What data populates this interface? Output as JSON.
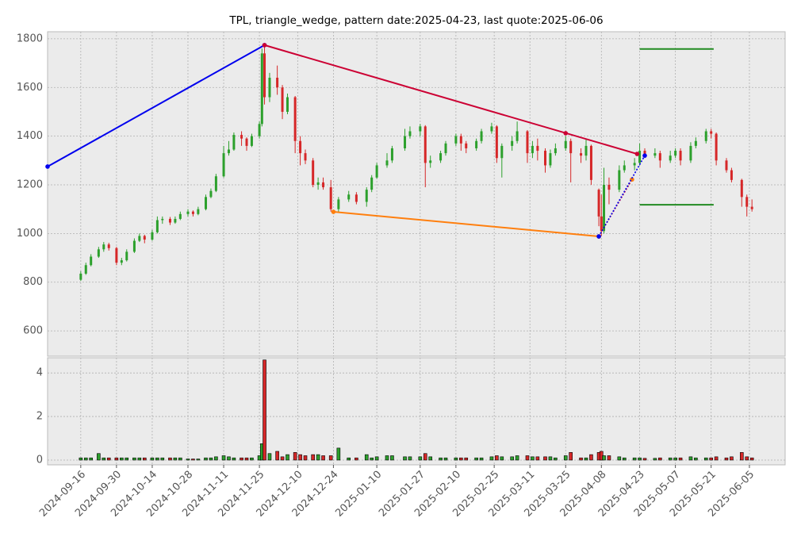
{
  "chart_data": {
    "type": "candlestick",
    "title": "TPL, triangle_wedge, pattern date:2025-04-23, last quote:2025-06-06",
    "up_color": "#2ca02c",
    "down_color": "#d62728",
    "grid": true,
    "xlim": [
      "2024-09-03",
      "2025-06-19"
    ],
    "xticks": [
      "2024-09-16",
      "2024-09-30",
      "2024-10-14",
      "2024-10-28",
      "2024-11-11",
      "2024-11-25",
      "2024-12-10",
      "2024-12-24",
      "2025-01-10",
      "2025-01-27",
      "2025-02-10",
      "2025-02-25",
      "2025-03-11",
      "2025-03-25",
      "2025-04-08",
      "2025-04-23",
      "2025-05-07",
      "2025-05-21",
      "2025-06-05"
    ],
    "ylim": [
      496,
      1829
    ],
    "yticks": [
      600,
      800,
      1000,
      1200,
      1400,
      1600,
      1800
    ],
    "volume_ylim": [
      -0.22,
      4.7
    ],
    "volume_yticks": [
      0,
      2,
      4
    ],
    "x": [
      "2024-09-16",
      "2024-09-18",
      "2024-09-20",
      "2024-09-23",
      "2024-09-25",
      "2024-09-27",
      "2024-09-30",
      "2024-10-02",
      "2024-10-04",
      "2024-10-07",
      "2024-10-09",
      "2024-10-11",
      "2024-10-14",
      "2024-10-16",
      "2024-10-18",
      "2024-10-21",
      "2024-10-23",
      "2024-10-25",
      "2024-10-28",
      "2024-10-30",
      "2024-11-01",
      "2024-11-04",
      "2024-11-06",
      "2024-11-08",
      "2024-11-11",
      "2024-11-13",
      "2024-11-15",
      "2024-11-18",
      "2024-11-20",
      "2024-11-22",
      "2024-11-25",
      "2024-11-26",
      "2024-11-27",
      "2024-11-29",
      "2024-12-02",
      "2024-12-04",
      "2024-12-06",
      "2024-12-09",
      "2024-12-11",
      "2024-12-13",
      "2024-12-16",
      "2024-12-18",
      "2024-12-20",
      "2024-12-23",
      "2024-12-26",
      "2024-12-30",
      "2025-01-02",
      "2025-01-06",
      "2025-01-08",
      "2025-01-10",
      "2025-01-14",
      "2025-01-16",
      "2025-01-21",
      "2025-01-23",
      "2025-01-27",
      "2025-01-29",
      "2025-01-31",
      "2025-02-04",
      "2025-02-06",
      "2025-02-10",
      "2025-02-12",
      "2025-02-14",
      "2025-02-18",
      "2025-02-20",
      "2025-02-24",
      "2025-02-26",
      "2025-02-28",
      "2025-03-04",
      "2025-03-06",
      "2025-03-10",
      "2025-03-12",
      "2025-03-14",
      "2025-03-17",
      "2025-03-19",
      "2025-03-21",
      "2025-03-25",
      "2025-03-27",
      "2025-03-31",
      "2025-04-02",
      "2025-04-04",
      "2025-04-07",
      "2025-04-08",
      "2025-04-09",
      "2025-04-11",
      "2025-04-15",
      "2025-04-17",
      "2025-04-21",
      "2025-04-23",
      "2025-04-25",
      "2025-04-29",
      "2025-05-01",
      "2025-05-05",
      "2025-05-07",
      "2025-05-09",
      "2025-05-13",
      "2025-05-15",
      "2025-05-19",
      "2025-05-21",
      "2025-05-23",
      "2025-05-27",
      "2025-05-29",
      "2025-06-02",
      "2025-06-04",
      "2025-06-06"
    ],
    "open": [
      810,
      835,
      870,
      905,
      935,
      955,
      940,
      880,
      890,
      925,
      970,
      990,
      975,
      1005,
      1055,
      1060,
      1045,
      1060,
      1080,
      1090,
      1080,
      1100,
      1150,
      1175,
      1235,
      1330,
      1345,
      1405,
      1390,
      1360,
      1400,
      1450,
      1740,
      1560,
      1640,
      1600,
      1500,
      1560,
      1380,
      1330,
      1300,
      1200,
      1210,
      1190,
      1100,
      1140,
      1160,
      1130,
      1180,
      1230,
      1280,
      1300,
      1350,
      1400,
      1420,
      1440,
      1290,
      1300,
      1330,
      1370,
      1400,
      1370,
      1350,
      1380,
      1420,
      1440,
      1310,
      1360,
      1380,
      1420,
      1330,
      1360,
      1340,
      1280,
      1330,
      1350,
      1380,
      1330,
      1320,
      1360,
      1180,
      1070,
      1010,
      1200,
      1180,
      1260,
      1280,
      1290,
      1340,
      1320,
      1330,
      1300,
      1320,
      1340,
      1300,
      1360,
      1380,
      1420,
      1410,
      1300,
      1260,
      1220,
      1150,
      1110
    ],
    "high": [
      845,
      880,
      915,
      945,
      965,
      962,
      945,
      900,
      935,
      980,
      1000,
      995,
      1015,
      1070,
      1070,
      1068,
      1070,
      1090,
      1100,
      1095,
      1110,
      1160,
      1185,
      1245,
      1360,
      1380,
      1415,
      1420,
      1395,
      1410,
      1460,
      1760,
      1770,
      1660,
      1690,
      1610,
      1575,
      1565,
      1400,
      1345,
      1310,
      1230,
      1230,
      1220,
      1150,
      1175,
      1170,
      1190,
      1240,
      1290,
      1330,
      1360,
      1430,
      1440,
      1450,
      1445,
      1320,
      1340,
      1380,
      1410,
      1410,
      1380,
      1390,
      1430,
      1455,
      1445,
      1370,
      1400,
      1460,
      1425,
      1380,
      1390,
      1350,
      1345,
      1370,
      1400,
      1390,
      1350,
      1390,
      1365,
      1185,
      1160,
      1270,
      1230,
      1280,
      1300,
      1310,
      1370,
      1350,
      1350,
      1340,
      1340,
      1350,
      1350,
      1375,
      1395,
      1430,
      1430,
      1415,
      1310,
      1270,
      1225,
      1160,
      1140
    ],
    "low": [
      805,
      830,
      865,
      900,
      925,
      930,
      870,
      870,
      885,
      920,
      965,
      960,
      970,
      1000,
      1040,
      1035,
      1040,
      1055,
      1070,
      1070,
      1075,
      1095,
      1145,
      1170,
      1230,
      1320,
      1340,
      1360,
      1340,
      1355,
      1390,
      1440,
      1530,
      1540,
      1570,
      1470,
      1490,
      1330,
      1280,
      1285,
      1190,
      1180,
      1180,
      1090,
      1085,
      1130,
      1120,
      1110,
      1170,
      1225,
      1270,
      1290,
      1340,
      1390,
      1400,
      1190,
      1270,
      1290,
      1320,
      1360,
      1340,
      1330,
      1340,
      1370,
      1410,
      1290,
      1230,
      1340,
      1370,
      1290,
      1310,
      1300,
      1250,
      1270,
      1320,
      1340,
      1210,
      1290,
      1300,
      1200,
      1030,
      990,
      1000,
      1120,
      1170,
      1250,
      1260,
      1280,
      1310,
      1310,
      1270,
      1290,
      1310,
      1280,
      1290,
      1350,
      1370,
      1390,
      1280,
      1250,
      1210,
      1110,
      1070,
      1090
    ],
    "close": [
      835,
      870,
      905,
      935,
      955,
      940,
      880,
      890,
      925,
      970,
      990,
      975,
      1005,
      1055,
      1060,
      1045,
      1060,
      1080,
      1090,
      1080,
      1100,
      1150,
      1175,
      1235,
      1330,
      1345,
      1405,
      1390,
      1360,
      1400,
      1450,
      1740,
      1560,
      1640,
      1600,
      1500,
      1560,
      1380,
      1330,
      1300,
      1200,
      1210,
      1190,
      1100,
      1140,
      1160,
      1130,
      1180,
      1230,
      1280,
      1300,
      1350,
      1400,
      1420,
      1440,
      1290,
      1300,
      1330,
      1370,
      1400,
      1370,
      1350,
      1380,
      1420,
      1440,
      1310,
      1360,
      1380,
      1420,
      1330,
      1360,
      1340,
      1280,
      1330,
      1350,
      1380,
      1330,
      1320,
      1360,
      1220,
      1070,
      1010,
      1200,
      1180,
      1260,
      1280,
      1290,
      1340,
      1320,
      1330,
      1300,
      1320,
      1340,
      1300,
      1360,
      1380,
      1420,
      1410,
      1300,
      1260,
      1220,
      1150,
      1110,
      1100
    ],
    "volume": [
      0.1,
      0.1,
      0.1,
      0.3,
      0.1,
      0.1,
      0.1,
      0.1,
      0.1,
      0.1,
      0.1,
      0.1,
      0.1,
      0.1,
      0.1,
      0.1,
      0.1,
      0.1,
      0.05,
      0.05,
      0.05,
      0.1,
      0.1,
      0.15,
      0.2,
      0.15,
      0.1,
      0.1,
      0.1,
      0.1,
      0.2,
      0.75,
      4.6,
      0.3,
      0.4,
      0.15,
      0.25,
      0.35,
      0.25,
      0.2,
      0.25,
      0.25,
      0.2,
      0.2,
      0.55,
      0.1,
      0.1,
      0.25,
      0.1,
      0.15,
      0.2,
      0.2,
      0.15,
      0.15,
      0.15,
      0.3,
      0.15,
      0.1,
      0.1,
      0.1,
      0.1,
      0.1,
      0.1,
      0.1,
      0.15,
      0.2,
      0.15,
      0.15,
      0.2,
      0.2,
      0.15,
      0.15,
      0.15,
      0.15,
      0.1,
      0.2,
      0.35,
      0.1,
      0.1,
      0.25,
      0.35,
      0.4,
      0.2,
      0.2,
      0.15,
      0.1,
      0.1,
      0.1,
      0.08,
      0.08,
      0.1,
      0.1,
      0.1,
      0.1,
      0.15,
      0.1,
      0.1,
      0.1,
      0.15,
      0.1,
      0.15,
      0.35,
      0.15,
      0.1
    ],
    "lines": [
      {
        "color": "#0000ee",
        "style": "solid",
        "points": [
          [
            "2024-09-03",
            1275
          ],
          [
            "2024-11-27",
            1774
          ]
        ],
        "marker_color": "#0000ee"
      },
      {
        "color": "#cc0033",
        "style": "solid",
        "points": [
          [
            "2024-11-27",
            1774
          ],
          [
            "2025-04-22",
            1327
          ]
        ],
        "marker_color": "#cc0033"
      },
      {
        "color": "#ff7f0e",
        "style": "solid",
        "points": [
          [
            "2024-12-24",
            1089
          ],
          [
            "2025-04-07",
            988
          ]
        ],
        "marker_color": "#ff7f0e"
      },
      {
        "color": "#cc0033",
        "style": "dotted",
        "points": [
          [
            "2025-04-07",
            988
          ],
          [
            "2025-04-20",
            1222
          ]
        ],
        "marker_color": "#ff7f0e"
      },
      {
        "color": "#0000ee",
        "style": "dotted",
        "points": [
          [
            "2025-04-07",
            988
          ],
          [
            "2025-04-25",
            1320
          ]
        ],
        "marker_color": "#0000ee"
      },
      {
        "color": "#cc0033",
        "style": "none",
        "points": [
          [
            "2025-03-25",
            1412
          ]
        ],
        "marker_color": "#cc0033"
      },
      {
        "color": "#228b22",
        "style": "solid",
        "points": [
          [
            "2025-04-23",
            1758
          ],
          [
            "2025-05-22",
            1758
          ]
        ]
      },
      {
        "color": "#228b22",
        "style": "solid",
        "points": [
          [
            "2025-04-23",
            1118
          ],
          [
            "2025-05-22",
            1118
          ]
        ]
      }
    ]
  }
}
